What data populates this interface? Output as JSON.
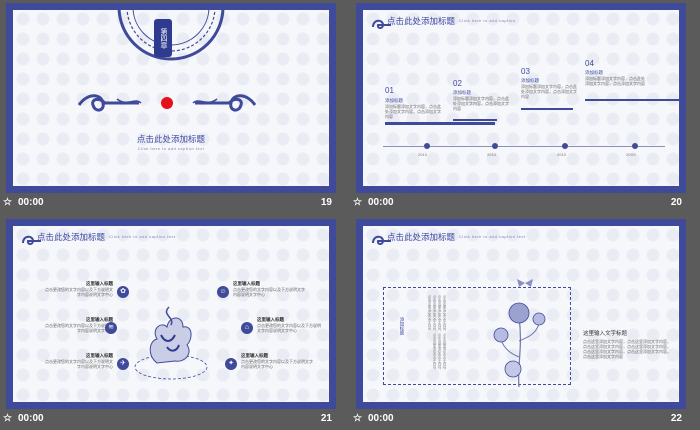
{
  "colors": {
    "accent": "#3f4a9a",
    "background": "#5b5b5b",
    "slide_bg": "#f6f7fb"
  },
  "slides": [
    {
      "number": "19",
      "time": "00:00",
      "section": "第四章",
      "title": "点击此处添加标题",
      "subtitle": "Click here to add caption text"
    },
    {
      "number": "20",
      "time": "00:00",
      "title": "点击此处添加标题",
      "subtitle": "Click here to add caption",
      "items": [
        {
          "index": "01",
          "heading": "添加标题",
          "text": "添加标题添加文字内容，点击此处添加文字内容，点击添加文字内容"
        },
        {
          "index": "02",
          "heading": "添加标题",
          "text": "添加标题添加文字内容，点击此处添加文字内容，点击添加文字内容"
        },
        {
          "index": "03",
          "heading": "添加标题",
          "text": "添加标题添加文字内容，点击此处添加文字内容，点击添加文字内容"
        },
        {
          "index": "04",
          "heading": "添加标题",
          "text": "添加标题添加文字内容，点击此处添加文字内容，点击添加文字内容"
        }
      ],
      "years": [
        "2013",
        "2014",
        "2019",
        "20XX"
      ]
    },
    {
      "number": "21",
      "time": "00:00",
      "title": "点击此处添加标题",
      "subtitle": "Click here to add caption text",
      "left_items": [
        {
          "heading": "这里输入标题",
          "text": "点击更改您的文字内容以及下方说明文字内容说明文字中心"
        },
        {
          "heading": "这里输入标题",
          "text": "点击更改您的文字内容以及下方说明文字内容说明文字中心"
        },
        {
          "heading": "这里输入标题",
          "text": "点击更改您的文字内容以及下方说明文字内容说明文字中心"
        }
      ],
      "right_items": [
        {
          "heading": "这里输入标题",
          "text": "点击更改您的文字内容以及下方说明文字内容说明文字中心"
        },
        {
          "heading": "这里输入标题",
          "text": "点击更改您的文字内容以及下方说明文字内容说明文字中心"
        },
        {
          "heading": "这里输入标题",
          "text": "点击更改您的文字内容以及下方说明文字内容说明文字中心"
        }
      ]
    },
    {
      "number": "22",
      "time": "00:00",
      "title": "点击此处添加标题",
      "subtitle": "Click here to add caption text",
      "vertical_label": "添加标题",
      "heading": "这里输入文字标题",
      "text": "点击这里添加文字内容，点击这里添加文字内容，点击这里添加文字内容，点击这里添加文字内容，点击这里添加文字内容，点击这里添加文字内容，点击这里添加文字内容"
    }
  ]
}
